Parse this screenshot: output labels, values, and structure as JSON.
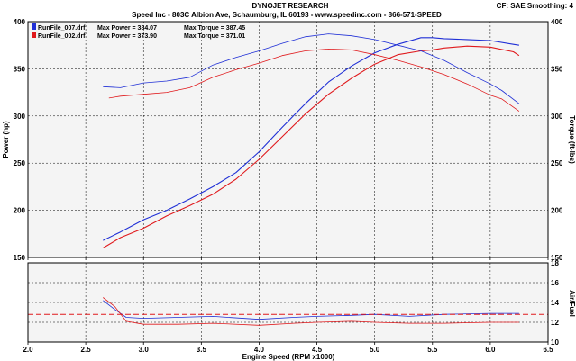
{
  "header": {
    "title": "DYNOJET RESEARCH",
    "subtitle": "Speed Inc - 803C Albion Ave, Schaumburg, IL 60193 - www.speedinc.com - 866-571-SPEED",
    "corner_info": "CF: SAE  Smoothing: 4"
  },
  "colors": {
    "run1": "#1f2fd6",
    "run2": "#e0191c",
    "panel_bg": "#f4f4f4",
    "border": "#000000",
    "grid": "#000000"
  },
  "chart_data": [
    {
      "type": "line",
      "name": "power-torque",
      "xlabel": "",
      "ylabel_left": "Power (hp)",
      "ylabel_right": "Torque (ft-lbs)",
      "xlim": [
        2.0,
        6.5
      ],
      "ylim": [
        150,
        400
      ],
      "x_ticks": [
        2.0,
        2.5,
        3.0,
        3.5,
        4.0,
        4.5,
        5.0,
        5.5,
        6.0,
        6.5
      ],
      "y_ticks": [
        150,
        200,
        250,
        300,
        350,
        400
      ],
      "grid": true,
      "legend": [
        {
          "file": "RunFile_007.drf",
          "max_power_label": "Max Power = 384.07",
          "max_torque_label": "Max Torque = 387.45",
          "color": "#1f2fd6"
        },
        {
          "file": "RunFile_002.drf",
          "max_power_label": "Max Power = 373.90",
          "max_torque_label": "Max Torque = 371.01",
          "color": "#e0191c"
        }
      ],
      "series": [
        {
          "quantity": "power",
          "color": "#1f2fd6",
          "width": 1.1,
          "x": [
            2.65,
            2.8,
            3.0,
            3.2,
            3.4,
            3.6,
            3.8,
            4.0,
            4.2,
            4.4,
            4.6,
            4.8,
            5.0,
            5.2,
            5.4,
            5.5,
            5.6,
            5.8,
            6.0,
            6.2,
            6.25
          ],
          "y": [
            168,
            177,
            190,
            200,
            212,
            225,
            240,
            262,
            288,
            313,
            336,
            353,
            367,
            376,
            383,
            383,
            382,
            381,
            380,
            376,
            375
          ]
        },
        {
          "quantity": "power",
          "color": "#e0191c",
          "width": 1.1,
          "x": [
            2.65,
            2.8,
            3.0,
            3.2,
            3.4,
            3.6,
            3.8,
            4.0,
            4.2,
            4.4,
            4.6,
            4.8,
            5.0,
            5.2,
            5.4,
            5.5,
            5.6,
            5.8,
            6.0,
            6.2,
            6.25
          ],
          "y": [
            160,
            171,
            181,
            194,
            205,
            217,
            233,
            254,
            278,
            302,
            323,
            340,
            355,
            365,
            369,
            370,
            372,
            374,
            373,
            368,
            364
          ]
        },
        {
          "quantity": "torque",
          "color": "#1f2fd6",
          "width": 0.8,
          "x": [
            2.65,
            2.8,
            3.0,
            3.2,
            3.4,
            3.6,
            3.8,
            4.0,
            4.2,
            4.4,
            4.6,
            4.8,
            5.0,
            5.2,
            5.4,
            5.6,
            5.8,
            6.0,
            6.1,
            6.25
          ],
          "y": [
            331,
            330,
            335,
            337,
            341,
            354,
            362,
            369,
            377,
            384,
            387,
            385,
            381,
            375,
            369,
            359,
            346,
            334,
            327,
            313
          ]
        },
        {
          "quantity": "torque",
          "color": "#e0191c",
          "width": 0.8,
          "x": [
            2.7,
            2.8,
            3.0,
            3.2,
            3.4,
            3.6,
            3.8,
            4.0,
            4.2,
            4.4,
            4.6,
            4.8,
            5.0,
            5.2,
            5.4,
            5.6,
            5.8,
            6.0,
            6.1,
            6.25
          ],
          "y": [
            319,
            321,
            323,
            325,
            330,
            341,
            349,
            356,
            364,
            369,
            371,
            370,
            365,
            359,
            352,
            344,
            334,
            322,
            318,
            305
          ]
        }
      ]
    },
    {
      "type": "line",
      "name": "air-fuel",
      "xlabel": "Engine Speed (RPM x1000)",
      "ylabel_right": "Air/Fuel",
      "xlim": [
        2.0,
        6.5
      ],
      "ylim": [
        10,
        18
      ],
      "x_ticks": [
        2.0,
        2.5,
        3.0,
        3.5,
        4.0,
        4.5,
        5.0,
        5.5,
        6.0,
        6.5
      ],
      "y_ticks": [
        10,
        12,
        14,
        16,
        18
      ],
      "grid": true,
      "series": [
        {
          "quantity": "air-fuel",
          "color": "#1f2fd6",
          "width": 0.8,
          "x": [
            2.65,
            2.75,
            2.85,
            3.0,
            3.3,
            3.6,
            4.0,
            4.3,
            4.5,
            4.8,
            5.0,
            5.3,
            5.6,
            6.0,
            6.25
          ],
          "y": [
            14.2,
            13.3,
            12.5,
            12.4,
            12.5,
            12.6,
            12.3,
            12.5,
            12.6,
            12.7,
            12.8,
            12.6,
            12.8,
            12.9,
            12.9
          ]
        },
        {
          "quantity": "air-fuel",
          "color": "#e0191c",
          "width": 0.8,
          "x": [
            2.65,
            2.75,
            2.85,
            3.0,
            3.3,
            3.6,
            4.0,
            4.3,
            4.5,
            4.8,
            5.0,
            5.3,
            5.6,
            6.0,
            6.25
          ],
          "y": [
            14.5,
            13.6,
            12.1,
            11.8,
            11.8,
            11.9,
            11.7,
            11.9,
            12.0,
            12.1,
            12.0,
            11.9,
            11.9,
            12.0,
            12.0
          ]
        },
        {
          "quantity": "air-fuel-target",
          "color": "#e0191c",
          "width": 1.0,
          "dashed": true,
          "x": [
            2.0,
            6.5
          ],
          "y": [
            12.8,
            12.8
          ]
        }
      ]
    }
  ]
}
